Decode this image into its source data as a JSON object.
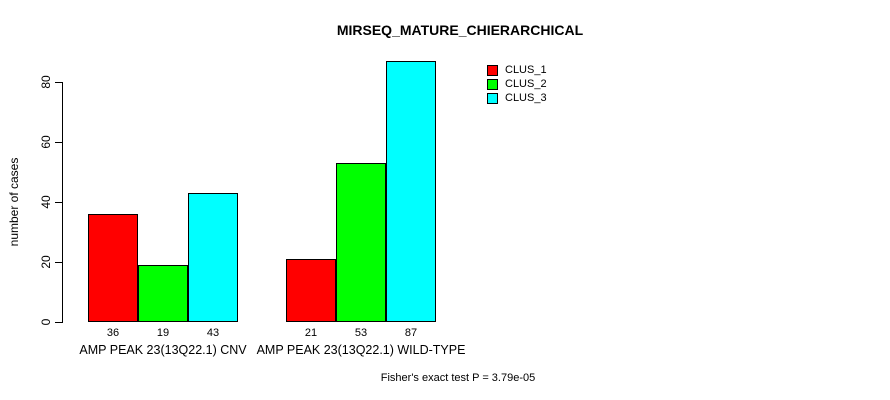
{
  "title": "MIRSEQ_MATURE_CHIERARCHICAL",
  "annotation": "Fisher's exact test P = 3.79e-05",
  "chart_data": {
    "type": "bar",
    "title": "MIRSEQ_MATURE_CHIERARCHICAL",
    "xlabel": "",
    "ylabel": "number of cases",
    "ylim": [
      0,
      87
    ],
    "yticks": [
      "0",
      "20",
      "40",
      "60",
      "80"
    ],
    "ytick_values": [
      0,
      20,
      40,
      60,
      80
    ],
    "grid": false,
    "legend_position": "top-right",
    "categories": [
      "AMP PEAK 23(13Q22.1) CNV",
      "AMP PEAK 23(13Q22.1) WILD-TYPE"
    ],
    "series": [
      {
        "name": "CLUS_1",
        "color": "#ff0000",
        "values": [
          36,
          21
        ]
      },
      {
        "name": "CLUS_2",
        "color": "#00ff00",
        "values": [
          19,
          53
        ]
      },
      {
        "name": "CLUS_3",
        "color": "#00ffff",
        "values": [
          43,
          87
        ]
      }
    ],
    "bar_value_labels": [
      [
        "36",
        "19",
        "43"
      ],
      [
        "21",
        "53",
        "87"
      ]
    ],
    "bar_border_color": "#000000",
    "axis_color": "#000000",
    "background_color": "#ffffff"
  }
}
